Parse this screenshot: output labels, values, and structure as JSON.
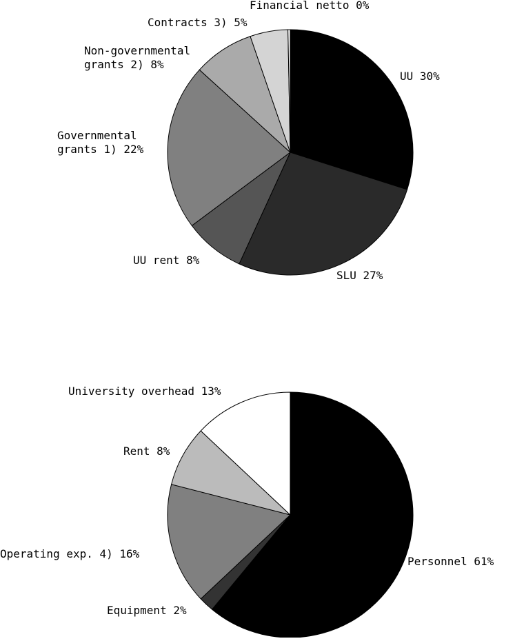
{
  "chart_data": [
    {
      "type": "pie",
      "title": "",
      "slices": [
        {
          "label": "UU 30%",
          "value": 30,
          "color": "#000000"
        },
        {
          "label": "SLU 27%",
          "value": 27,
          "color": "#2a2a2a"
        },
        {
          "label": "UU rent 8%",
          "value": 8,
          "color": "#555555"
        },
        {
          "label": "Governmental grants 1) 22%",
          "lines": [
            "Governmental",
            "grants 1) 22%"
          ],
          "value": 22,
          "color": "#808080"
        },
        {
          "label": "Non-governmental grants 2) 8%",
          "lines": [
            "Non-governmental",
            "grants 2) 8%"
          ],
          "value": 8,
          "color": "#aaaaaa"
        },
        {
          "label": "Contracts 3) 5%",
          "value": 5,
          "color": "#d4d4d4"
        },
        {
          "label": "Financial netto 0%",
          "value": 0.3,
          "color": "#ffffff"
        }
      ]
    },
    {
      "type": "pie",
      "title": "",
      "slices": [
        {
          "label": "Personnel 61%",
          "value": 61,
          "color": "#000000"
        },
        {
          "label": "Equipment 2%",
          "value": 2,
          "color": "#333333"
        },
        {
          "label": "Operating exp. 4) 16%",
          "value": 16,
          "color": "#808080"
        },
        {
          "label": "Rent 8%",
          "value": 8,
          "color": "#bbbbbb"
        },
        {
          "label": "University overhead 13%",
          "value": 13,
          "color": "#ffffff"
        }
      ]
    }
  ]
}
